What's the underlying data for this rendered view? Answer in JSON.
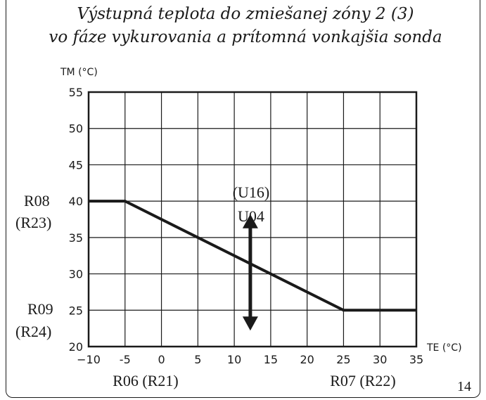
{
  "chart_data": {
    "type": "line",
    "title_line1": "Výstupná teplota do zmiešanej zóny 2 (3)",
    "title_line2": "vo fáze vykurovania a prítomná vonkajšia sonda",
    "ylabel": "TM (°C)",
    "xlabel": "TE (°C)",
    "xlim": [
      -10,
      35
    ],
    "ylim": [
      20,
      55
    ],
    "xticks": [
      -10,
      -5,
      0,
      5,
      10,
      15,
      20,
      25,
      30,
      35
    ],
    "yticks": [
      20,
      25,
      30,
      35,
      40,
      45,
      50,
      55
    ],
    "xtick_labels": [
      "−10",
      "-5",
      "0",
      "5",
      "10",
      "15",
      "20",
      "25",
      "30",
      "35"
    ],
    "ytick_labels": [
      "20",
      "25",
      "30",
      "35",
      "40",
      "45",
      "50",
      "55"
    ],
    "grid": true,
    "series": [
      {
        "x": [
          -10,
          -5,
          25,
          35
        ],
        "y": [
          40,
          40,
          25,
          25
        ]
      }
    ],
    "annotations": {
      "r08": "R08",
      "r23": "(R23)",
      "r09": "R09",
      "r24": "(R24)",
      "u16": "(U16)",
      "u04": "U04",
      "x_min_ref": "R06 (R21)",
      "x_max_ref": "R07 (R22)"
    },
    "arrow_range": {
      "x": 12.2,
      "y_from": 38.2,
      "y_to": 22.2
    }
  },
  "page_number": "14"
}
